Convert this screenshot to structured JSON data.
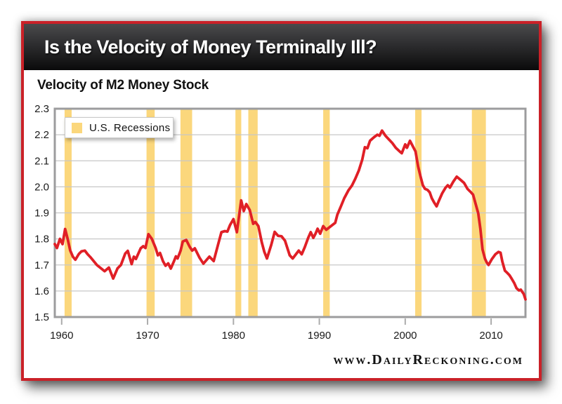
{
  "header": {
    "title": "Is the Velocity of Money Terminally Ill?"
  },
  "chart": {
    "title": "Velocity of M2 Money Stock",
    "legend": {
      "label": "U.S. Recessions"
    }
  },
  "footer": {
    "site": "www.DailyReckoning.com"
  },
  "colors": {
    "card_border": "#CA2128",
    "header_bg_top": "#4A4A4C",
    "header_bg_bottom": "#0A0A0B",
    "recession_band": "#FBD77C",
    "line": "#E01F26",
    "grid": "#C7C7C7",
    "plot_border": "#9C9C9E",
    "tick": "#ACACAC",
    "axis_text": "#1A1A1A"
  },
  "chart_data": {
    "type": "line",
    "title": "Velocity of M2 Money Stock",
    "xlabel": "",
    "ylabel": "",
    "grid": "horizontal",
    "legend_position": "top-left",
    "legend": [
      "U.S. Recessions"
    ],
    "x_axis": {
      "range": [
        1959.2,
        2014.0
      ],
      "ticks": [
        1960,
        1970,
        1980,
        1990,
        2000,
        2010
      ]
    },
    "y_axis": {
      "range": [
        1.5,
        2.3
      ],
      "tick_labels": [
        "1.5",
        "1.6",
        "1.7",
        "1.8",
        "1.9",
        "2.0",
        "2.1",
        "2.2",
        "2.3"
      ]
    },
    "recessions": [
      [
        1960.34,
        1961.16
      ],
      [
        1969.88,
        1970.83
      ],
      [
        1973.83,
        1975.19
      ],
      [
        1980.23,
        1980.91
      ],
      [
        1981.73,
        1982.82
      ],
      [
        1990.45,
        1991.21
      ],
      [
        2001.16,
        2001.9
      ],
      [
        2007.76,
        2009.39
      ]
    ],
    "series": [
      {
        "name": "Velocity of M2 Money Stock",
        "points": [
          [
            1959.2,
            1.78
          ],
          [
            1959.45,
            1.765
          ],
          [
            1959.8,
            1.8
          ],
          [
            1960.1,
            1.78
          ],
          [
            1960.4,
            1.838
          ],
          [
            1960.7,
            1.8
          ],
          [
            1961.0,
            1.755
          ],
          [
            1961.3,
            1.732
          ],
          [
            1961.6,
            1.72
          ],
          [
            1962.0,
            1.742
          ],
          [
            1962.3,
            1.752
          ],
          [
            1962.7,
            1.755
          ],
          [
            1963.0,
            1.742
          ],
          [
            1963.4,
            1.728
          ],
          [
            1964.1,
            1.7
          ],
          [
            1964.7,
            1.684
          ],
          [
            1965.0,
            1.676
          ],
          [
            1965.5,
            1.69
          ],
          [
            1966.0,
            1.648
          ],
          [
            1966.5,
            1.687
          ],
          [
            1966.9,
            1.7
          ],
          [
            1967.4,
            1.744
          ],
          [
            1967.7,
            1.754
          ],
          [
            1968.15,
            1.703
          ],
          [
            1968.4,
            1.732
          ],
          [
            1968.65,
            1.723
          ],
          [
            1969.2,
            1.764
          ],
          [
            1969.5,
            1.772
          ],
          [
            1969.75,
            1.765
          ],
          [
            1970.1,
            1.818
          ],
          [
            1970.5,
            1.8
          ],
          [
            1970.95,
            1.764
          ],
          [
            1971.2,
            1.737
          ],
          [
            1971.45,
            1.746
          ],
          [
            1971.8,
            1.714
          ],
          [
            1972.1,
            1.697
          ],
          [
            1972.4,
            1.706
          ],
          [
            1972.7,
            1.686
          ],
          [
            1973.05,
            1.712
          ],
          [
            1973.3,
            1.733
          ],
          [
            1973.5,
            1.725
          ],
          [
            1973.85,
            1.755
          ],
          [
            1974.1,
            1.79
          ],
          [
            1974.5,
            1.796
          ],
          [
            1974.9,
            1.77
          ],
          [
            1975.2,
            1.755
          ],
          [
            1975.5,
            1.764
          ],
          [
            1976.05,
            1.728
          ],
          [
            1976.5,
            1.705
          ],
          [
            1977.2,
            1.732
          ],
          [
            1977.7,
            1.715
          ],
          [
            1978.2,
            1.777
          ],
          [
            1978.6,
            1.826
          ],
          [
            1979.0,
            1.83
          ],
          [
            1979.3,
            1.828
          ],
          [
            1979.6,
            1.853
          ],
          [
            1980.0,
            1.876
          ],
          [
            1980.4,
            1.826
          ],
          [
            1980.9,
            1.948
          ],
          [
            1981.2,
            1.907
          ],
          [
            1981.5,
            1.934
          ],
          [
            1981.9,
            1.911
          ],
          [
            1982.3,
            1.858
          ],
          [
            1982.55,
            1.865
          ],
          [
            1982.9,
            1.849
          ],
          [
            1983.3,
            1.786
          ],
          [
            1983.6,
            1.75
          ],
          [
            1983.9,
            1.725
          ],
          [
            1984.4,
            1.777
          ],
          [
            1984.8,
            1.827
          ],
          [
            1985.2,
            1.812
          ],
          [
            1985.6,
            1.81
          ],
          [
            1986.0,
            1.793
          ],
          [
            1986.55,
            1.737
          ],
          [
            1986.9,
            1.725
          ],
          [
            1987.6,
            1.755
          ],
          [
            1987.95,
            1.741
          ],
          [
            1988.3,
            1.768
          ],
          [
            1988.7,
            1.804
          ],
          [
            1989.0,
            1.826
          ],
          [
            1989.3,
            1.804
          ],
          [
            1989.55,
            1.82
          ],
          [
            1989.8,
            1.839
          ],
          [
            1990.1,
            1.82
          ],
          [
            1990.45,
            1.849
          ],
          [
            1990.8,
            1.835
          ],
          [
            1991.2,
            1.845
          ],
          [
            1991.85,
            1.862
          ],
          [
            1992.1,
            1.893
          ],
          [
            1992.5,
            1.924
          ],
          [
            1992.9,
            1.956
          ],
          [
            1993.4,
            1.987
          ],
          [
            1993.8,
            2.005
          ],
          [
            1994.2,
            2.032
          ],
          [
            1994.6,
            2.063
          ],
          [
            1995.0,
            2.105
          ],
          [
            1995.3,
            2.152
          ],
          [
            1995.6,
            2.148
          ],
          [
            1995.9,
            2.177
          ],
          [
            1996.35,
            2.19
          ],
          [
            1996.75,
            2.2
          ],
          [
            1997.0,
            2.196
          ],
          [
            1997.3,
            2.216
          ],
          [
            1997.7,
            2.196
          ],
          [
            1998.1,
            2.182
          ],
          [
            1998.5,
            2.168
          ],
          [
            1998.9,
            2.15
          ],
          [
            1999.35,
            2.136
          ],
          [
            1999.6,
            2.129
          ],
          [
            2000.0,
            2.163
          ],
          [
            2000.2,
            2.15
          ],
          [
            2000.55,
            2.177
          ],
          [
            2001.0,
            2.148
          ],
          [
            2001.2,
            2.136
          ],
          [
            2001.5,
            2.078
          ],
          [
            2001.8,
            2.038
          ],
          [
            2002.05,
            2.006
          ],
          [
            2002.3,
            1.992
          ],
          [
            2002.6,
            1.988
          ],
          [
            2002.85,
            1.979
          ],
          [
            2003.1,
            1.956
          ],
          [
            2003.4,
            1.938
          ],
          [
            2003.65,
            1.925
          ],
          [
            2003.9,
            1.945
          ],
          [
            2004.3,
            1.975
          ],
          [
            2004.7,
            1.997
          ],
          [
            2004.95,
            2.006
          ],
          [
            2005.2,
            1.997
          ],
          [
            2005.6,
            2.02
          ],
          [
            2006.0,
            2.039
          ],
          [
            2006.4,
            2.028
          ],
          [
            2006.85,
            2.015
          ],
          [
            2007.25,
            1.992
          ],
          [
            2007.65,
            1.979
          ],
          [
            2007.9,
            1.97
          ],
          [
            2008.2,
            1.934
          ],
          [
            2008.5,
            1.898
          ],
          [
            2008.75,
            1.839
          ],
          [
            2009.0,
            1.759
          ],
          [
            2009.3,
            1.723
          ],
          [
            2009.5,
            1.709
          ],
          [
            2009.7,
            1.7
          ],
          [
            2010.1,
            1.723
          ],
          [
            2010.5,
            1.741
          ],
          [
            2010.85,
            1.75
          ],
          [
            2011.1,
            1.747
          ],
          [
            2011.3,
            1.714
          ],
          [
            2011.6,
            1.678
          ],
          [
            2011.9,
            1.669
          ],
          [
            2012.15,
            1.66
          ],
          [
            2012.4,
            1.647
          ],
          [
            2012.7,
            1.63
          ],
          [
            2012.95,
            1.611
          ],
          [
            2013.25,
            1.602
          ],
          [
            2013.45,
            1.605
          ],
          [
            2013.8,
            1.588
          ],
          [
            2014.0,
            1.568
          ]
        ]
      }
    ]
  }
}
